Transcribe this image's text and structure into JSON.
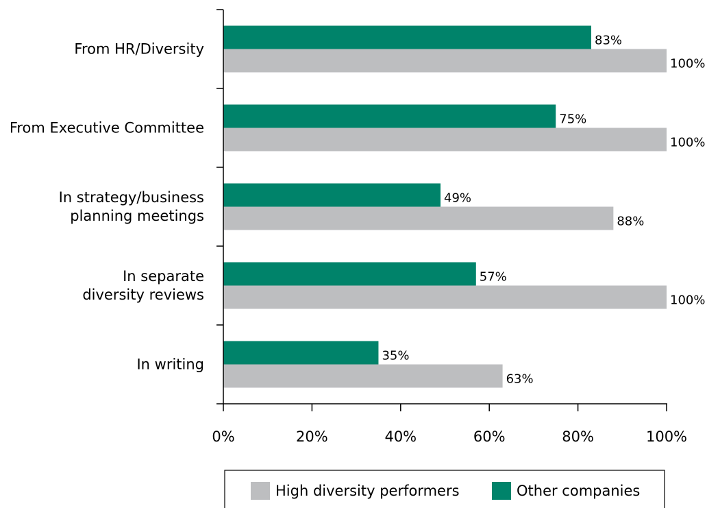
{
  "chart_data": {
    "type": "bar",
    "orientation": "horizontal",
    "categories": [
      [
        "From HR/Diversity"
      ],
      [
        "From Executive Committee"
      ],
      [
        "In strategy/business",
        "planning meetings"
      ],
      [
        "In separate",
        "diversity reviews"
      ],
      [
        "In writing"
      ]
    ],
    "series": [
      {
        "name": "Other companies",
        "color": "#00836a",
        "values": [
          83,
          75,
          49,
          57,
          35
        ],
        "labels": [
          "83%",
          "75%",
          "49%",
          "57%",
          "35%"
        ]
      },
      {
        "name": "High diversity performers",
        "color": "#bdbec0",
        "values": [
          100,
          100,
          88,
          100,
          63
        ],
        "labels": [
          "100%",
          "100%",
          "88%",
          "100%",
          "63%"
        ]
      }
    ],
    "xlim": [
      0,
      100
    ],
    "xticks": [
      "0%",
      "20%",
      "40%",
      "60%",
      "80%",
      "100%"
    ],
    "grid": false,
    "legend": {
      "position": "bottom",
      "entries": [
        {
          "label": "High diversity performers",
          "color": "#bdbec0"
        },
        {
          "label": "Other companies",
          "color": "#00836a"
        }
      ]
    }
  }
}
